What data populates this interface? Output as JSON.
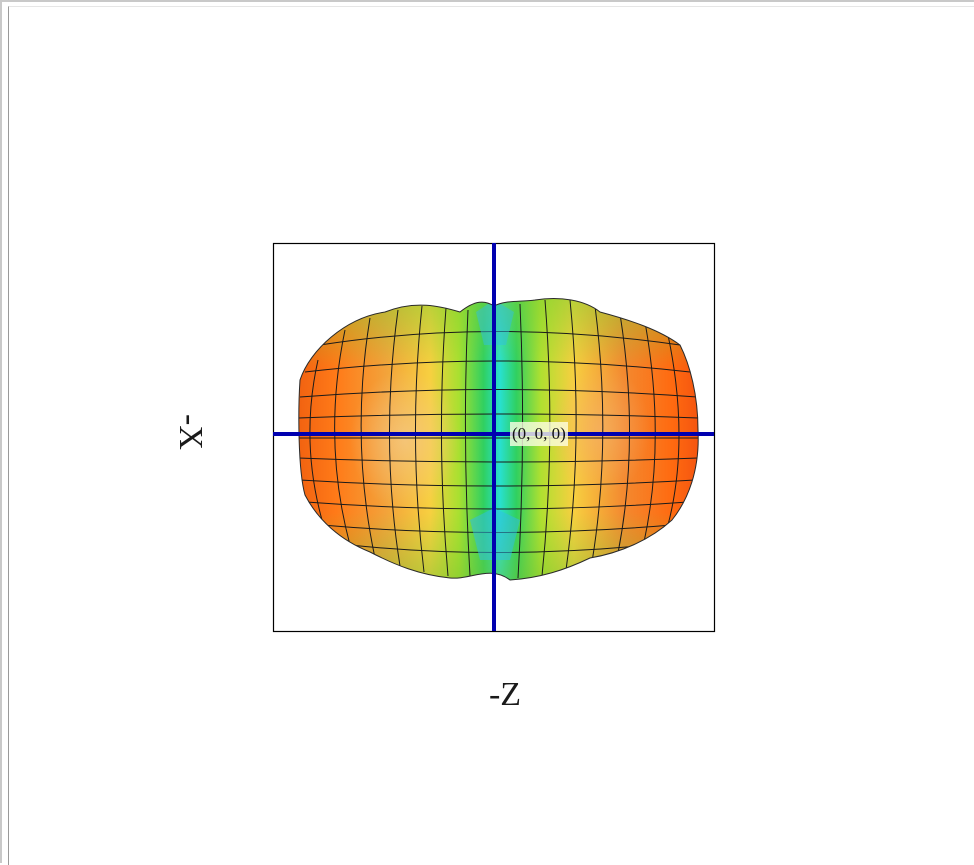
{
  "view": {
    "horizontal_axis_label": "-Z",
    "vertical_axis_label": "-X",
    "origin_label": "(0, 0, 0)"
  },
  "colors": {
    "frame_border": "#000000",
    "axis_lines": "#0000b0",
    "mesh_lines": "#1a1a1a",
    "surface_high": "#ff6a10",
    "surface_mid": "#f0e030",
    "surface_low": "#10c080",
    "surface_min": "#20e0e0"
  }
}
